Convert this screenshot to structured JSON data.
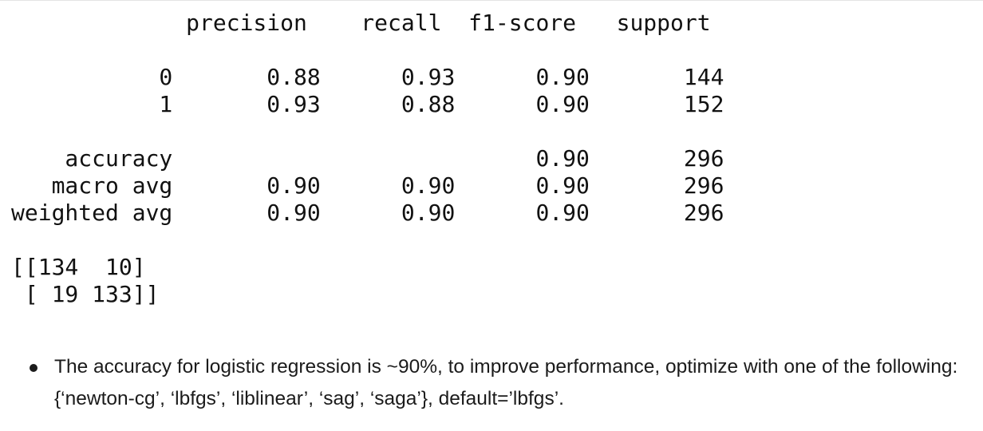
{
  "report": {
    "lines": [
      "             precision    recall  f1-score   support",
      "",
      "           0       0.88      0.93      0.90       144",
      "           1       0.93      0.88      0.90       152",
      "",
      "    accuracy                           0.90       296",
      "   macro avg       0.90      0.90      0.90       296",
      "weighted avg       0.90      0.90      0.90       296",
      "",
      "[[134  10]",
      " [ 19 133]]"
    ]
  },
  "notes": [
    {
      "text": "The accuracy for logistic regression is ~90%, to improve performance, optimize with one of the following: {‘newton-cg’, ‘lbfgs’, ‘liblinear’, ‘sag’, ‘saga’}, default=’lbfgs’."
    }
  ]
}
